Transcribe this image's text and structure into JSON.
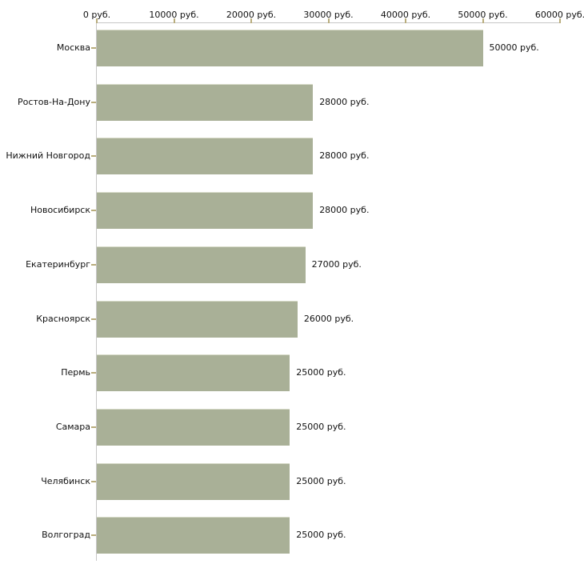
{
  "chart_data": {
    "type": "bar",
    "orientation": "horizontal",
    "title": "",
    "xlabel": "",
    "ylabel": "",
    "unit": "руб.",
    "categories": [
      "Москва",
      "Ростов-На-Дону",
      "Нижний Новгород",
      "Новосибирск",
      "Екатеринбург",
      "Красноярск",
      "Пермь",
      "Самара",
      "Челябинск",
      "Волгоград"
    ],
    "values": [
      50000,
      28000,
      28000,
      28000,
      27000,
      26000,
      25000,
      25000,
      25000,
      25000
    ],
    "value_labels": [
      "50000 руб.",
      "28000 руб.",
      "28000 руб.",
      "28000 руб.",
      "27000 руб.",
      "26000 руб.",
      "25000 руб.",
      "25000 руб.",
      "25000 руб.",
      "25000 руб."
    ],
    "xlim": [
      0,
      60000
    ],
    "x_ticks": [
      0,
      10000,
      20000,
      30000,
      40000,
      50000,
      60000
    ],
    "x_tick_labels": [
      "0 руб.",
      "10000 руб.",
      "20000 руб.",
      "30000 руб.",
      "40000 руб.",
      "50000 руб.",
      "60000 руб."
    ],
    "grid": false,
    "legend": null,
    "colors": {
      "bar_fill": "#a9b097",
      "bar_top_edge": "#d8dbc9",
      "axis_line": "#c6c6c6",
      "tick_mark": "#b9ad7c",
      "text": "#111111",
      "background": "#ffffff"
    }
  }
}
